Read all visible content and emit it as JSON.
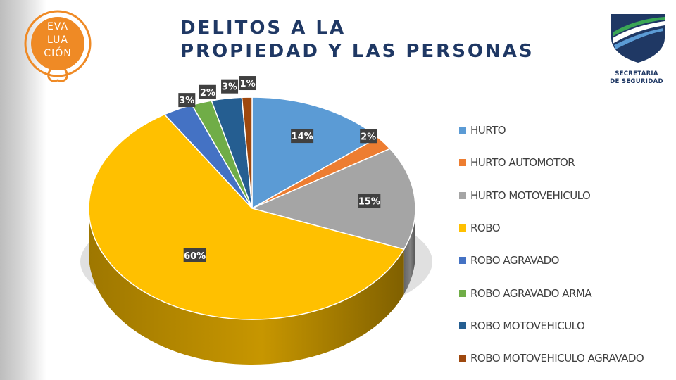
{
  "header": {
    "title_line1": "DELITOS A LA",
    "title_line2": "PROPIEDAD Y LAS PERSONAS"
  },
  "logo_left": {
    "line1": "EVA",
    "line2": "LUA",
    "line3": "CIÓN",
    "color": "#ef8a25"
  },
  "logo_right": {
    "line1": "SECRETARIA",
    "line2": "DE SEGURIDAD"
  },
  "chart_data": {
    "type": "pie",
    "title": "DELITOS A LA PROPIEDAD Y LAS PERSONAS",
    "legend_position": "right",
    "style": "3d",
    "categories": [
      "HURTO",
      "HURTO AUTOMOTOR",
      "HURTO MOTOVEHICULO",
      "ROBO",
      "ROBO AGRAVADO",
      "ROBO AGRAVADO ARMA",
      "ROBO MOTOVEHICULO",
      "ROBO MOTOVEHICULO AGRAVADO"
    ],
    "values": [
      14,
      2,
      15,
      60,
      3,
      2,
      3,
      1
    ],
    "data_labels": [
      "14%",
      "2%",
      "15%",
      "60%",
      "3%",
      "2%",
      "3%",
      "1%"
    ],
    "colors": [
      "#5b9bd5",
      "#ed7d31",
      "#a5a5a5",
      "#ffc000",
      "#4472c4",
      "#70ad47",
      "#255e91",
      "#9e480e"
    ]
  }
}
